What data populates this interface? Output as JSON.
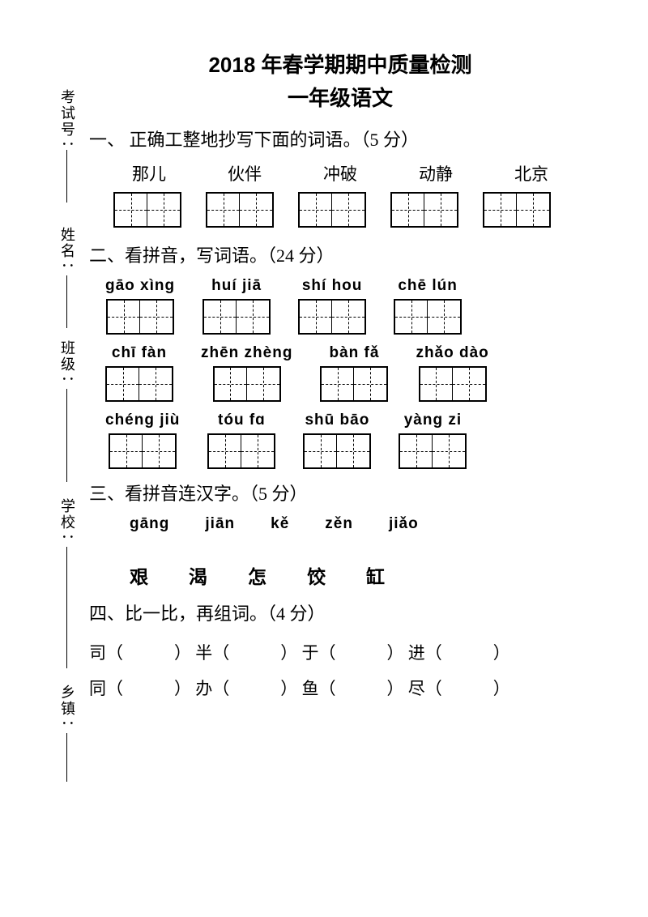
{
  "title_line1": "2018 年春学期期中质量检测",
  "title_line2": "一年级语文",
  "sidebar": {
    "exam_no": "考试号",
    "name": "姓名",
    "class": "班级",
    "school": "学校",
    "town": "乡镇"
  },
  "q1": {
    "heading": "一、 正确工整地抄写下面的词语。（5 分）",
    "words": [
      "那儿",
      "伙伴",
      "冲破",
      "动静",
      "北京"
    ]
  },
  "q2": {
    "heading": "二、看拼音，写词语。（24 分）",
    "rows": [
      [
        "gāo xìng",
        "huí jiā",
        "shí hou",
        "chē lún"
      ],
      [
        "chī fàn",
        "zhēn zhèng",
        "bàn fǎ",
        "zhǎo dào"
      ],
      [
        "chéng jiù",
        "tóu fɑ",
        "shū bāo",
        "yàng zi"
      ]
    ]
  },
  "q3": {
    "heading": "三、看拼音连汉字。（5 分）",
    "pinyin": [
      "gāng",
      "jiān",
      "kě",
      "zěn",
      "jiǎo"
    ],
    "chars": [
      "艰",
      "渴",
      "怎",
      "饺",
      "缸"
    ]
  },
  "q4": {
    "heading": "四、比一比，再组词。（4 分）",
    "row1": [
      "司",
      "半",
      "于",
      "进"
    ],
    "row2": [
      "同",
      "办",
      "鱼",
      "尽"
    ]
  }
}
